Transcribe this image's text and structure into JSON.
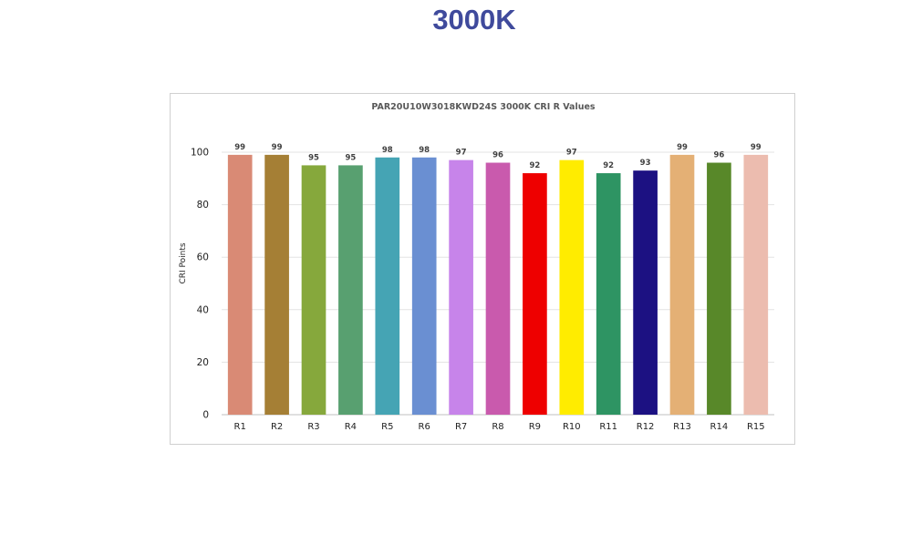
{
  "slide": {
    "title": "3000K"
  },
  "chart_data": {
    "type": "bar",
    "title": "PAR20U10W3018KWD24S 3000K CRI R Values",
    "xlabel": "",
    "ylabel": "CRI Points",
    "ylim": [
      0,
      100
    ],
    "yticks": [
      0,
      20,
      40,
      60,
      80,
      100
    ],
    "grid": true,
    "categories": [
      "R1",
      "R2",
      "R3",
      "R4",
      "R5",
      "R6",
      "R7",
      "R8",
      "R9",
      "R10",
      "R11",
      "R12",
      "R13",
      "R14",
      "R15"
    ],
    "values": [
      99,
      99,
      95,
      95,
      98,
      98,
      97,
      96,
      92,
      97,
      92,
      93,
      99,
      96,
      99
    ],
    "colors": [
      "#d98a75",
      "#a57f35",
      "#86a83c",
      "#58a070",
      "#45a4b4",
      "#6a8fd2",
      "#c784ea",
      "#c95aad",
      "#ee0000",
      "#ffec00",
      "#2e9463",
      "#1c1182",
      "#e4b075",
      "#588829",
      "#ecbcaf"
    ]
  }
}
